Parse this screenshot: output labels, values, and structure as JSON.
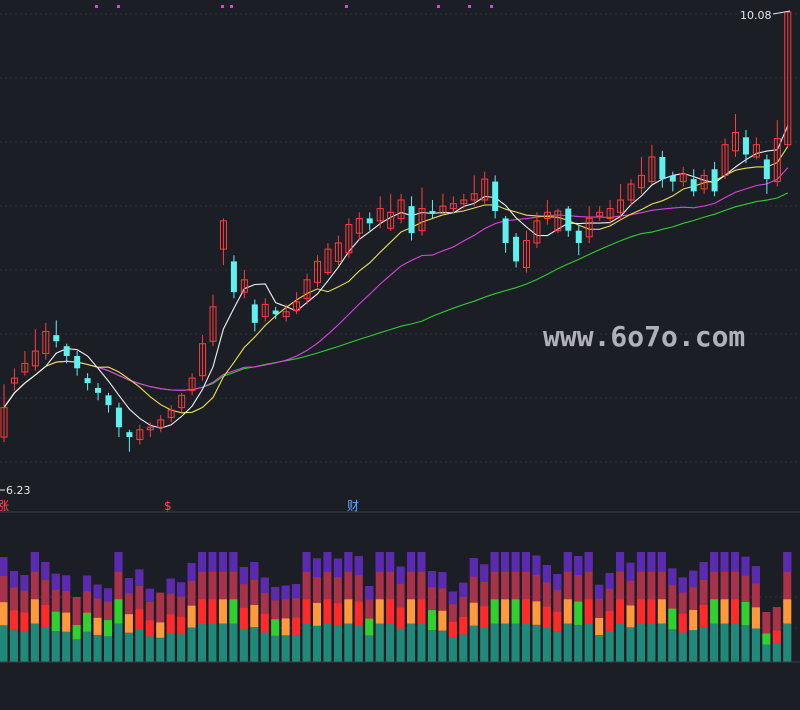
{
  "chart_data": [
    {
      "type": "candlestick",
      "title": "",
      "ylim": [
        6.23,
        10.08
      ],
      "y_min_label": "6.23",
      "y_max_label": "10.08",
      "markers_bottom": [
        "涨",
        "$",
        "财"
      ],
      "watermark": "www.6o7o.com",
      "candles": [
        [
          6.62,
          6.86,
          6.58,
          7.05
        ],
        [
          7.06,
          7.1,
          7.0,
          7.18
        ],
        [
          7.15,
          7.22,
          7.12,
          7.32
        ],
        [
          7.2,
          7.32,
          7.16,
          7.5
        ],
        [
          7.3,
          7.48,
          7.25,
          7.55
        ],
        [
          7.45,
          7.4,
          7.35,
          7.57
        ],
        [
          7.36,
          7.28,
          7.22,
          7.38
        ],
        [
          7.28,
          7.18,
          7.12,
          7.32
        ],
        [
          7.1,
          7.06,
          7.0,
          7.14
        ],
        [
          7.02,
          6.98,
          6.92,
          7.06
        ],
        [
          6.96,
          6.88,
          6.82,
          6.98
        ],
        [
          6.86,
          6.7,
          6.62,
          6.9
        ],
        [
          6.66,
          6.62,
          6.5,
          6.68
        ],
        [
          6.6,
          6.68,
          6.56,
          6.72
        ],
        [
          6.68,
          6.7,
          6.62,
          6.74
        ],
        [
          6.7,
          6.76,
          6.66,
          6.8
        ],
        [
          6.78,
          6.84,
          6.74,
          6.88
        ],
        [
          6.86,
          6.96,
          6.82,
          6.98
        ],
        [
          7.0,
          7.1,
          6.96,
          7.14
        ],
        [
          7.12,
          7.38,
          7.08,
          7.45
        ],
        [
          7.4,
          7.68,
          7.36,
          7.78
        ],
        [
          8.15,
          8.38,
          8.02,
          8.4
        ],
        [
          8.05,
          7.8,
          7.75,
          8.1
        ],
        [
          7.8,
          7.9,
          7.75,
          7.98
        ],
        [
          7.7,
          7.55,
          7.48,
          7.74
        ],
        [
          7.6,
          7.7,
          7.56,
          7.75
        ],
        [
          7.65,
          7.62,
          7.58,
          7.68
        ],
        [
          7.6,
          7.64,
          7.56,
          7.7
        ],
        [
          7.65,
          7.72,
          7.62,
          7.8
        ],
        [
          7.75,
          7.9,
          7.7,
          7.95
        ],
        [
          7.88,
          8.05,
          7.84,
          8.1
        ],
        [
          7.96,
          8.15,
          7.94,
          8.2
        ],
        [
          8.05,
          8.2,
          8.02,
          8.26
        ],
        [
          8.12,
          8.35,
          8.08,
          8.4
        ],
        [
          8.28,
          8.4,
          8.22,
          8.45
        ],
        [
          8.4,
          8.36,
          8.3,
          8.45
        ],
        [
          8.38,
          8.48,
          8.32,
          8.58
        ],
        [
          8.32,
          8.45,
          8.3,
          8.6
        ],
        [
          8.4,
          8.55,
          8.36,
          8.6
        ],
        [
          8.5,
          8.28,
          8.22,
          8.58
        ],
        [
          8.3,
          8.48,
          8.26,
          8.65
        ],
        [
          8.46,
          8.44,
          8.4,
          8.55
        ],
        [
          8.44,
          8.5,
          8.42,
          8.6
        ],
        [
          8.48,
          8.52,
          8.44,
          8.58
        ],
        [
          8.52,
          8.55,
          8.48,
          8.6
        ],
        [
          8.55,
          8.6,
          8.5,
          8.75
        ],
        [
          8.55,
          8.72,
          8.52,
          8.78
        ],
        [
          8.7,
          8.46,
          8.4,
          8.75
        ],
        [
          8.4,
          8.2,
          8.12,
          8.42
        ],
        [
          8.25,
          8.05,
          8.0,
          8.28
        ],
        [
          8.0,
          8.22,
          7.96,
          8.3
        ],
        [
          8.2,
          8.38,
          8.16,
          8.45
        ],
        [
          8.4,
          8.45,
          8.35,
          8.55
        ],
        [
          8.3,
          8.46,
          8.28,
          8.48
        ],
        [
          8.48,
          8.3,
          8.25,
          8.5
        ],
        [
          8.3,
          8.2,
          8.1,
          8.35
        ],
        [
          8.25,
          8.4,
          8.2,
          8.5
        ],
        [
          8.42,
          8.45,
          8.38,
          8.5
        ],
        [
          8.4,
          8.48,
          8.35,
          8.55
        ],
        [
          8.45,
          8.55,
          8.4,
          8.68
        ],
        [
          8.55,
          8.68,
          8.5,
          8.72
        ],
        [
          8.65,
          8.75,
          8.6,
          8.9
        ],
        [
          8.7,
          8.9,
          8.68,
          9.0
        ],
        [
          8.9,
          8.72,
          8.65,
          8.95
        ],
        [
          8.75,
          8.7,
          8.62,
          8.78
        ],
        [
          8.7,
          8.76,
          8.66,
          8.82
        ],
        [
          8.72,
          8.62,
          8.58,
          8.8
        ],
        [
          8.64,
          8.75,
          8.6,
          8.8
        ],
        [
          8.8,
          8.62,
          8.58,
          8.86
        ],
        [
          8.75,
          9.0,
          8.72,
          9.05
        ],
        [
          8.95,
          9.1,
          8.9,
          9.25
        ],
        [
          9.06,
          8.92,
          8.85,
          9.12
        ],
        [
          8.9,
          9.0,
          8.88,
          9.06
        ],
        [
          8.88,
          8.72,
          8.6,
          8.92
        ],
        [
          8.7,
          9.05,
          8.66,
          9.2
        ],
        [
          9.0,
          10.08,
          8.98,
          10.08
        ]
      ]
    },
    {
      "type": "stacked-bar",
      "series_colors": {
        "base": "#a8324a",
        "teal": "#1f8a7a",
        "green": "#2fd12f",
        "orange": "#ff9a3c",
        "purple": "#5a2bb0",
        "red": "#ff2a2a",
        "gray": "#8a8a8a"
      }
    }
  ]
}
